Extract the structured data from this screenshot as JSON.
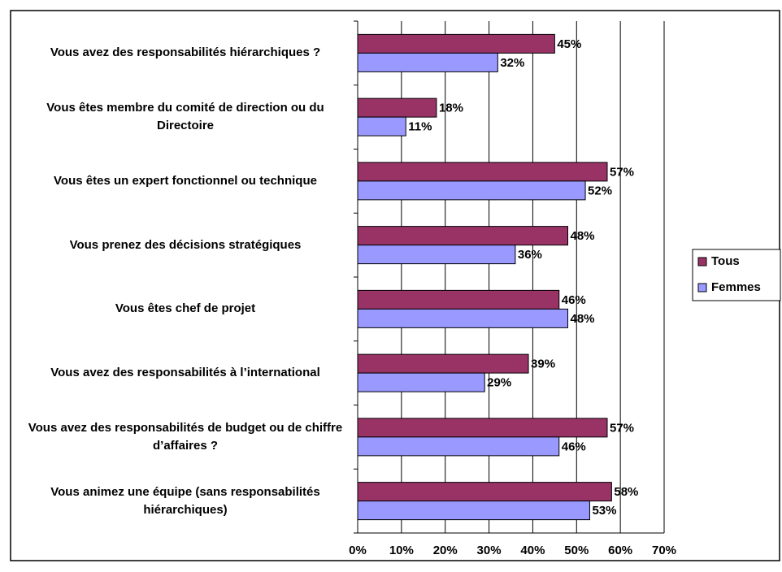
{
  "chart_data": {
    "type": "hbar",
    "categories": [
      "Vous avez des responsabilités hiérarchiques ?",
      "Vous êtes membre du comité de direction ou du Directoire",
      "Vous êtes un expert fonctionnel ou technique",
      "Vous prenez des décisions stratégiques",
      "Vous êtes chef de projet",
      "Vous avez des responsabilités à l’international",
      "Vous avez des responsabilités de budget ou de chiffre d’affaires ?",
      "Vous animez une équipe (sans responsabilités hiérarchiques)"
    ],
    "series": [
      {
        "name": "Tous",
        "color": "#993366",
        "values": [
          45,
          18,
          57,
          48,
          46,
          39,
          57,
          58
        ],
        "value_labels": [
          "45%",
          "18%",
          "57%",
          "48%",
          "46%",
          "39%",
          "57%",
          "58%"
        ]
      },
      {
        "name": "Femmes",
        "color": "#9999ff",
        "values": [
          32,
          11,
          52,
          36,
          48,
          29,
          46,
          53
        ],
        "value_labels": [
          "32%",
          "11%",
          "52%",
          "36%",
          "48%",
          "29%",
          "46%",
          "53%"
        ]
      }
    ],
    "xlim": [
      0,
      70
    ],
    "xticks": [
      {
        "value": 0,
        "label": "0%"
      },
      {
        "value": 10,
        "label": "10%"
      },
      {
        "value": 20,
        "label": "20%"
      },
      {
        "value": 30,
        "label": "30%"
      },
      {
        "value": 40,
        "label": "40%"
      },
      {
        "value": 50,
        "label": "50%"
      },
      {
        "value": 60,
        "label": "60%"
      },
      {
        "value": 70,
        "label": "70%"
      }
    ],
    "grid": true,
    "legend": "right"
  }
}
